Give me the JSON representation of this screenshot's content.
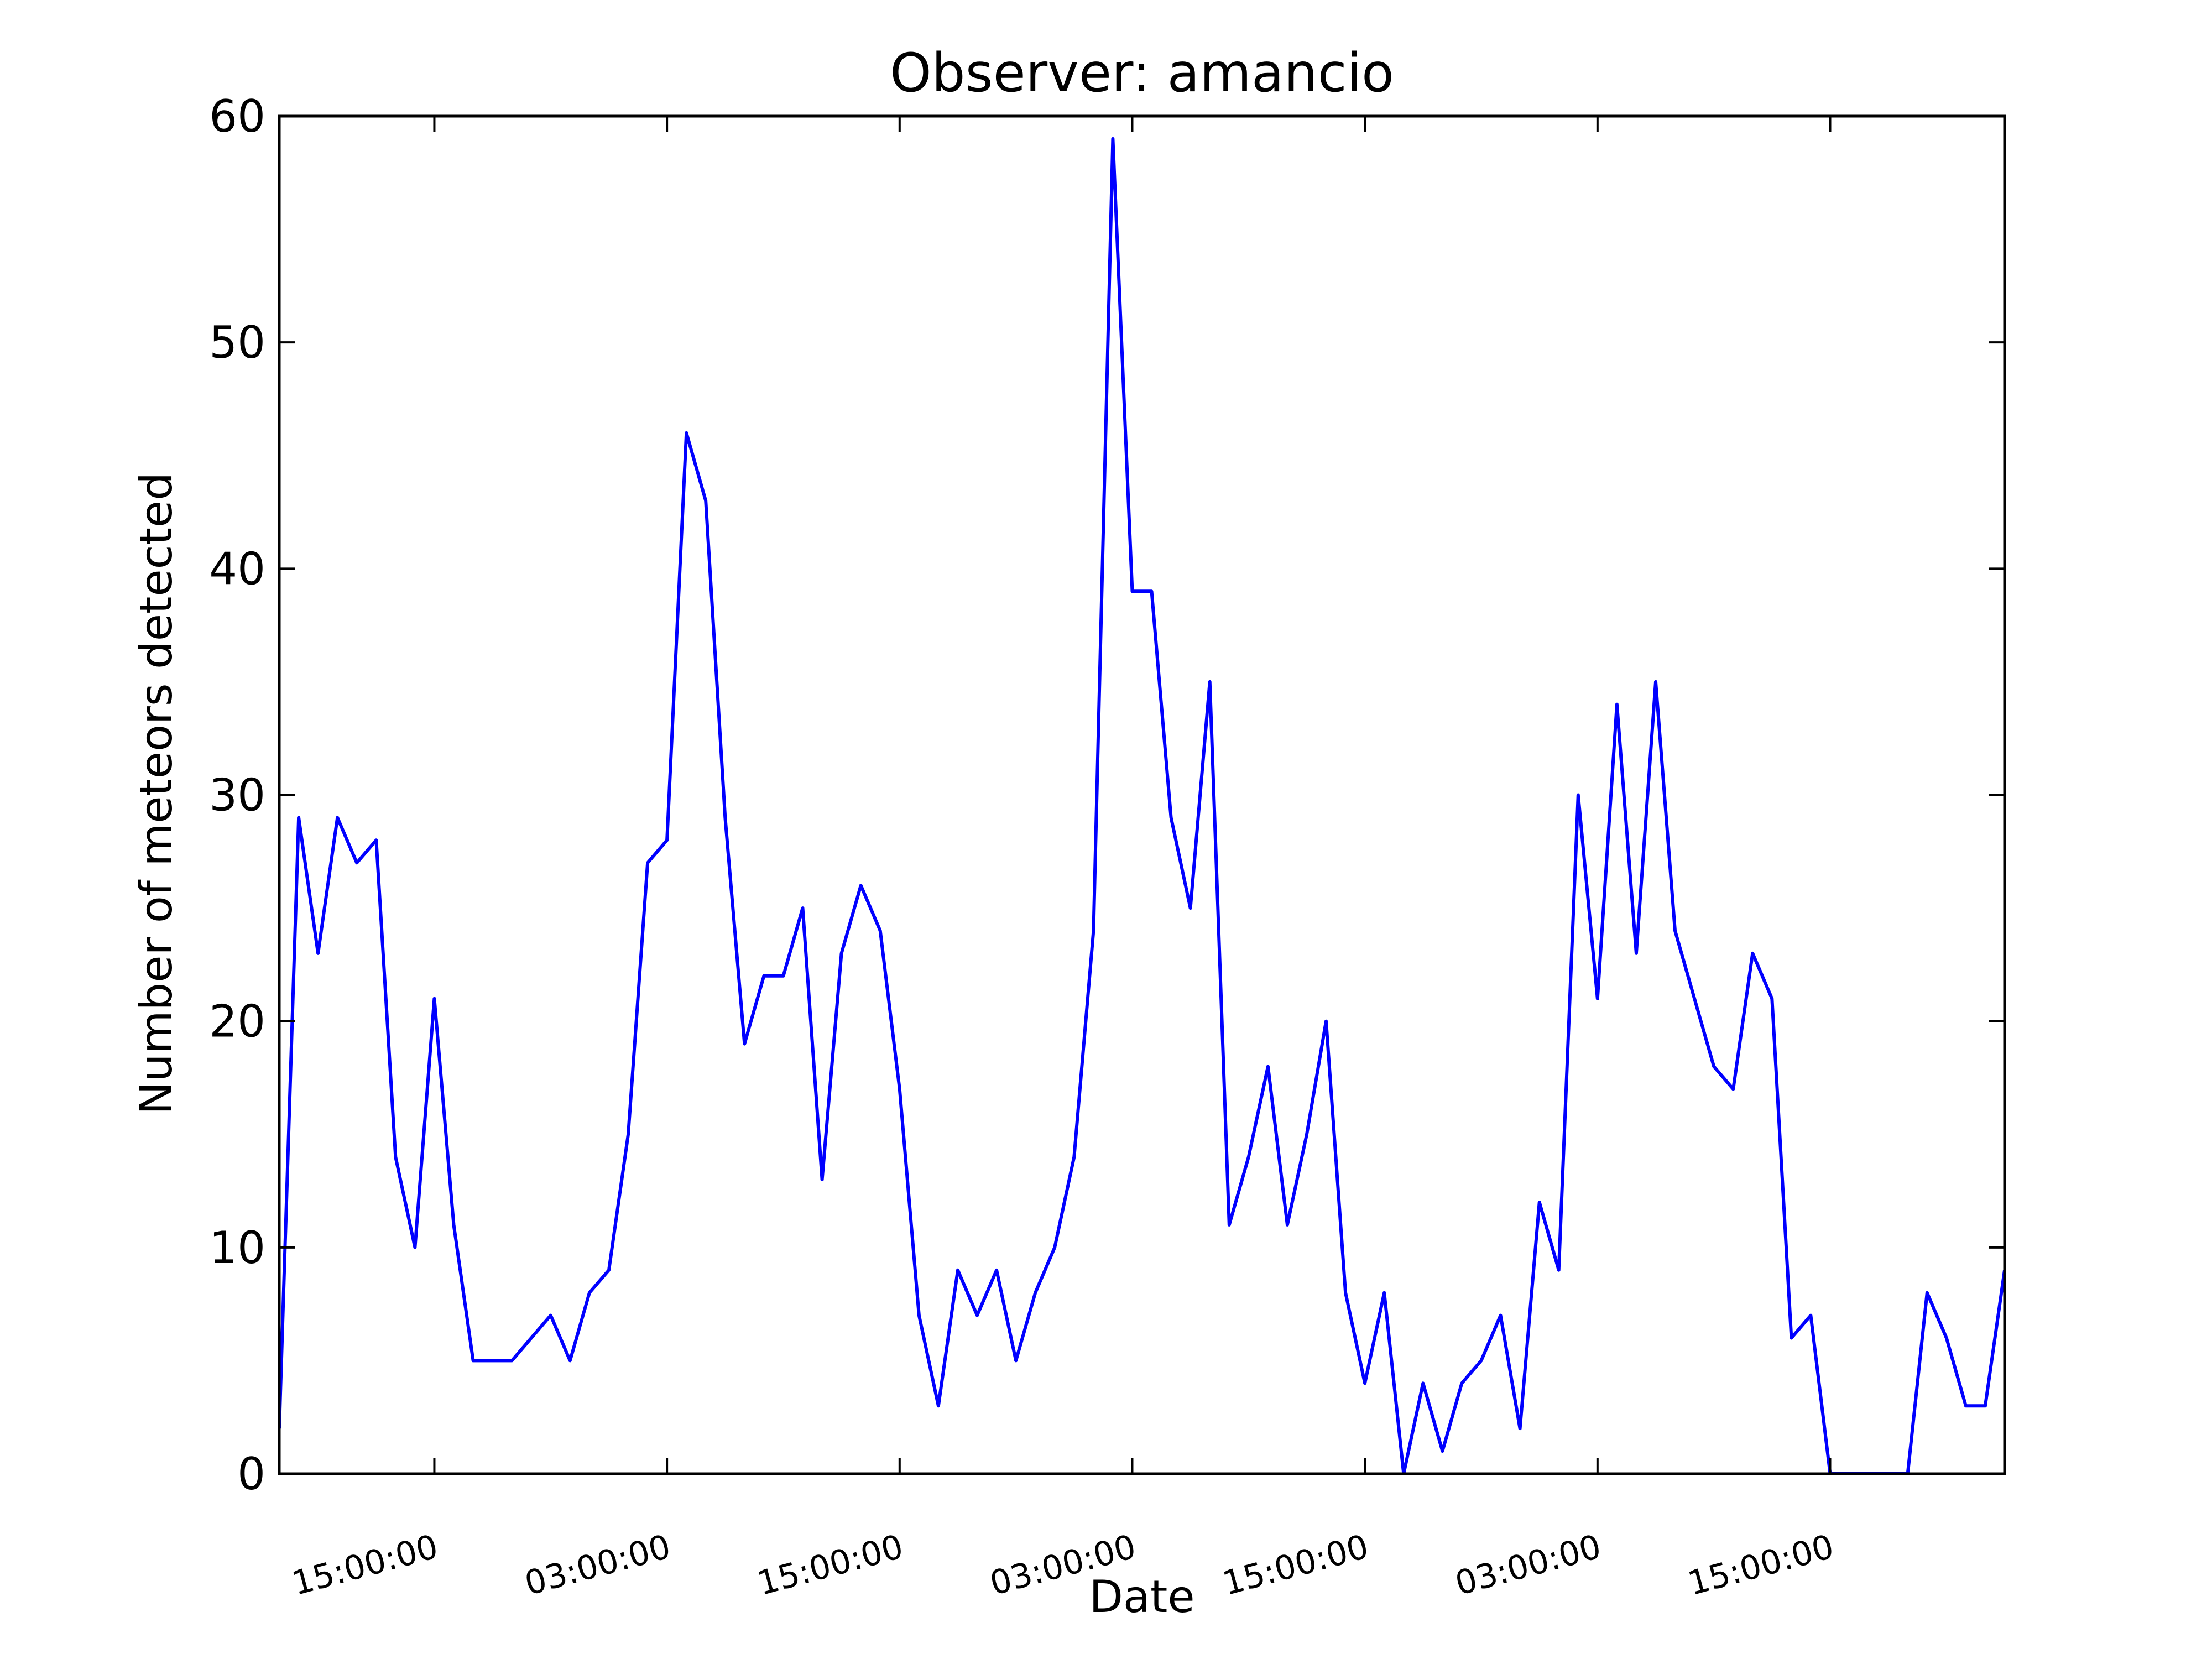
{
  "chart_data": {
    "type": "line",
    "title": "Observer: amancio",
    "xlabel": "Date",
    "ylabel": "Number of meteors detected",
    "ylim": [
      0,
      60
    ],
    "yticks": [
      "0",
      "10",
      "20",
      "30",
      "40",
      "50",
      "60"
    ],
    "xlim_hours": [
      7,
      96
    ],
    "xticks": [
      {
        "label": "15:00:00",
        "hour": 15
      },
      {
        "label": "03:00:00",
        "hour": 27
      },
      {
        "label": "15:00:00",
        "hour": 39
      },
      {
        "label": "03:00:00",
        "hour": 51
      },
      {
        "label": "15:00:00",
        "hour": 63
      },
      {
        "label": "03:00:00",
        "hour": 75
      },
      {
        "label": "15:00:00",
        "hour": 87
      }
    ],
    "grid": false,
    "line_color": "#0000ff",
    "series": [
      {
        "x": [
          7,
          8,
          9,
          10,
          11,
          12,
          13,
          14,
          15,
          16,
          17,
          18,
          19,
          20,
          21,
          22,
          23,
          24,
          25,
          26,
          27,
          28,
          29,
          30,
          31,
          32,
          33,
          34,
          35,
          36,
          37,
          38,
          39,
          40,
          41,
          42,
          43,
          44,
          45,
          46,
          47,
          48,
          49,
          50,
          51,
          52,
          53,
          54,
          55,
          56,
          57,
          58,
          59,
          60,
          61,
          62,
          63,
          64,
          65,
          66,
          67,
          68,
          69,
          70,
          71,
          72,
          73,
          74,
          75,
          76,
          77,
          78,
          79,
          80,
          81,
          82,
          83,
          84,
          85,
          86,
          87,
          88,
          89,
          90,
          91,
          92,
          93,
          94,
          95,
          96
        ],
        "y": [
          2,
          29,
          23,
          29,
          27,
          28,
          14,
          10,
          21,
          11,
          5,
          5,
          5,
          6,
          7,
          5,
          8,
          9,
          15,
          27,
          28,
          46,
          43,
          29,
          19,
          22,
          22,
          25,
          13,
          23,
          26,
          24,
          17,
          7,
          3,
          9,
          7,
          9,
          5,
          8,
          10,
          14,
          24,
          59,
          39,
          39,
          29,
          25,
          35,
          11,
          14,
          18,
          11,
          15,
          20,
          8,
          4,
          8,
          0,
          4,
          1,
          4,
          5,
          7,
          2,
          12,
          9,
          30,
          21,
          34,
          23,
          35,
          24,
          21,
          18,
          17,
          23,
          21,
          6,
          7,
          0,
          0,
          0,
          0,
          0,
          8,
          6,
          3,
          3,
          9
        ]
      }
    ]
  }
}
